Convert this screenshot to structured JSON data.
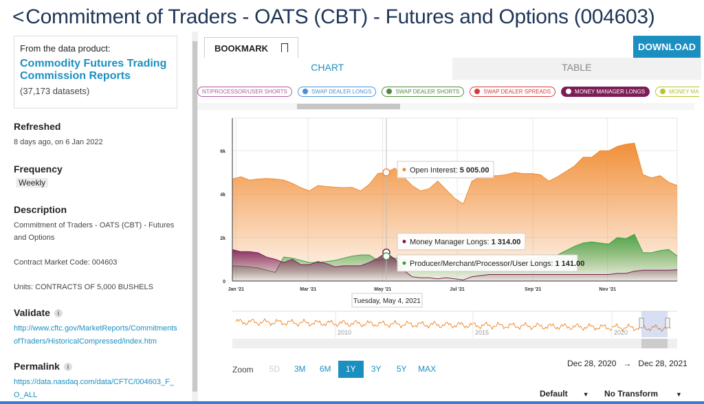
{
  "title": "Commitment of Traders - OATS (CBT) - Futures and Options (004603)",
  "back_icon": "chevron-left-icon",
  "sidebar": {
    "product_label": "From the data product:",
    "product_name": "Commodity Futures Trading Commission Reports",
    "dataset_count": "(37,173 datasets)",
    "refreshed_h": "Refreshed",
    "refreshed": "8 days ago, on 6 Jan 2022",
    "frequency_h": "Frequency",
    "frequency": "Weekly",
    "description_h": "Description",
    "description": "Commitment of Traders - OATS (CBT) - Futures and Options",
    "contract_code": "Contract Market Code: 004603",
    "units": "Units: CONTRACTS OF 5,000 BUSHELS",
    "validate_h": "Validate",
    "validate_url": "http://www.cftc.gov/MarketReports/CommitmentsofTraders/HistoricalCompressed/index.htm",
    "permalink_h": "Permalink",
    "permalink_url": "https://data.nasdaq.com/data/CFTC/004603_F_O_ALL"
  },
  "toolbar": {
    "bookmark": "BOOKMARK",
    "download": "DOWNLOAD"
  },
  "tabs": [
    {
      "label": "CHART",
      "active": true
    },
    {
      "label": "TABLE",
      "active": false
    }
  ],
  "legend": [
    {
      "label": "NT/PROCESSOR/USER SHORTS",
      "color": "#b05a9a",
      "dot": false
    },
    {
      "label": "SWAP DEALER LONGS",
      "color": "#4a90d9",
      "dot": true
    },
    {
      "label": "SWAP DEALER SHORTS",
      "color": "#4f8a3a",
      "dot": true
    },
    {
      "label": "SWAP DEALER SPREADS",
      "color": "#d63a3a",
      "dot": true
    },
    {
      "label": "MONEY MANAGER LONGS",
      "color": "#7b1e57",
      "dot": true,
      "selected": true
    },
    {
      "label": "MONEY MANAGI",
      "color": "#b8c230",
      "dot": true
    }
  ],
  "chart_data": {
    "type": "area",
    "x": [
      "2020-12-29",
      "2021-01-05",
      "2021-01-12",
      "2021-01-19",
      "2021-01-26",
      "2021-02-02",
      "2021-02-09",
      "2021-02-16",
      "2021-02-23",
      "2021-03-02",
      "2021-03-09",
      "2021-03-16",
      "2021-03-23",
      "2021-03-30",
      "2021-04-06",
      "2021-04-13",
      "2021-04-20",
      "2021-04-27",
      "2021-05-04",
      "2021-05-11",
      "2021-05-18",
      "2021-05-25",
      "2021-06-01",
      "2021-06-08",
      "2021-06-15",
      "2021-06-22",
      "2021-06-29",
      "2021-07-06",
      "2021-07-13",
      "2021-07-20",
      "2021-07-27",
      "2021-08-03",
      "2021-08-10",
      "2021-08-17",
      "2021-08-24",
      "2021-08-31",
      "2021-09-07",
      "2021-09-14",
      "2021-09-21",
      "2021-09-28",
      "2021-10-05",
      "2021-10-12",
      "2021-10-19",
      "2021-10-26",
      "2021-11-02",
      "2021-11-09",
      "2021-11-16",
      "2021-11-23",
      "2021-11-30",
      "2021-12-07",
      "2021-12-14",
      "2021-12-21",
      "2021-12-28"
    ],
    "x_ticks": [
      "Jan '21",
      "Mar '21",
      "May '21",
      "Jul '21",
      "Sep '21",
      "Nov '21"
    ],
    "x_tick_dates": [
      "2021-01-01",
      "2021-03-01",
      "2021-05-01",
      "2021-07-01",
      "2021-09-01",
      "2021-11-01"
    ],
    "y_ticks": [
      "0",
      "2k",
      "4k",
      "6k"
    ],
    "ylim": [
      0,
      7500
    ],
    "grid": true,
    "series": [
      {
        "name": "Open Interest",
        "color": "#f08a30",
        "values": [
          4700,
          4800,
          4650,
          4700,
          4720,
          4700,
          4650,
          4500,
          4300,
          4150,
          4400,
          4350,
          4320,
          4300,
          4310,
          4150,
          4450,
          4950,
          5005,
          5200,
          4800,
          4400,
          4150,
          4250,
          4600,
          4200,
          3800,
          3550,
          4600,
          4800,
          4850,
          4850,
          4900,
          5000,
          4950,
          4950,
          4900,
          4600,
          4800,
          5050,
          5300,
          5700,
          5700,
          6000,
          6000,
          6200,
          6300,
          6350,
          4900,
          4750,
          4850,
          4550,
          4400
        ]
      },
      {
        "name": "Producer/Merchant/Processor/User Longs",
        "color": "#3aa040",
        "values": [
          700,
          680,
          650,
          600,
          500,
          400,
          1100,
          1050,
          950,
          850,
          850,
          900,
          950,
          1050,
          1150,
          1200,
          1200,
          950,
          1141,
          1050,
          1000,
          950,
          900,
          850,
          800,
          750,
          700,
          650,
          700,
          750,
          800,
          850,
          900,
          950,
          1000,
          1050,
          1100,
          1150,
          1200,
          1400,
          1600,
          1750,
          1800,
          1750,
          1700,
          2000,
          1950,
          2150,
          1300,
          1300,
          1400,
          1450,
          1150
        ]
      },
      {
        "name": "Money Manager Longs",
        "color": "#7b1e57",
        "values": [
          1450,
          1350,
          1350,
          1300,
          1100,
          1000,
          850,
          1000,
          750,
          750,
          900,
          800,
          650,
          700,
          700,
          700,
          850,
          1050,
          1314,
          1000,
          500,
          200,
          150,
          150,
          100,
          150,
          100,
          50,
          200,
          250,
          300,
          300,
          300,
          300,
          300,
          300,
          300,
          300,
          300,
          300,
          300,
          300,
          300,
          300,
          300,
          350,
          350,
          450,
          500,
          500,
          500,
          500,
          520
        ]
      }
    ],
    "tooltip": {
      "date": "Tuesday, May 4, 2021",
      "items": [
        {
          "label": "Open Interest",
          "value": "5 005.00",
          "color": "#f08a30"
        },
        {
          "label": "Money Manager Longs",
          "value": "1 314.00",
          "color": "#7b1e57"
        },
        {
          "label": "Producer/Merchant/Processor/User Longs",
          "value": "1 141.00",
          "color": "#3aa040"
        }
      ]
    },
    "navigator_ticks": [
      "2010",
      "2015",
      "2020"
    ]
  },
  "zoom": {
    "label": "Zoom",
    "buttons": [
      {
        "label": "5D",
        "state": "disabled"
      },
      {
        "label": "3M"
      },
      {
        "label": "6M"
      },
      {
        "label": "1Y",
        "state": "active"
      },
      {
        "label": "3Y"
      },
      {
        "label": "5Y"
      },
      {
        "label": "MAX"
      }
    ]
  },
  "range": {
    "from": "Dec 28, 2020",
    "arrow": "→",
    "to": "Dec 28, 2021"
  },
  "selects": {
    "style": "Default",
    "transform": "No Transform"
  }
}
